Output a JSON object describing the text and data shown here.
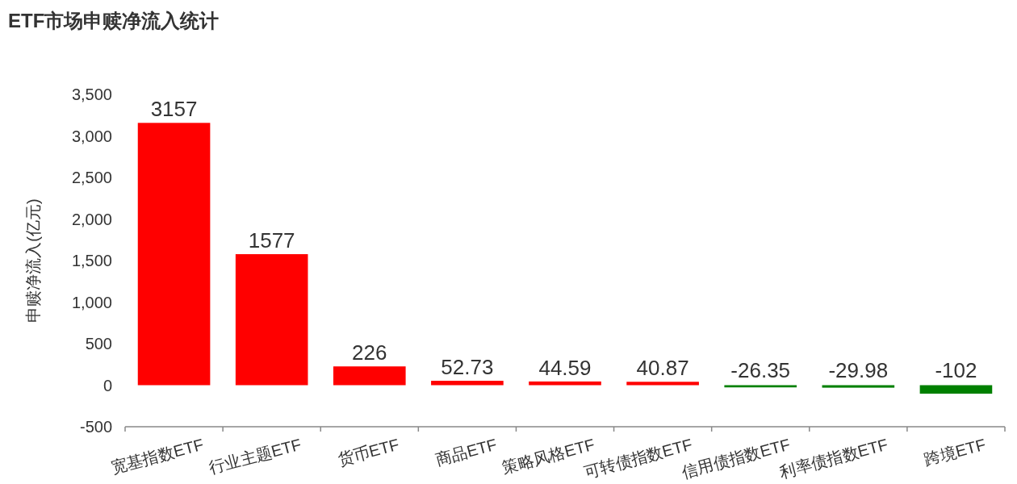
{
  "chart_data": {
    "type": "bar",
    "title": "ETF市场申赎净流入统计",
    "ylabel": "申赎净流入(亿元)",
    "categories": [
      "宽基指数ETF",
      "行业主题ETF",
      "货币ETF",
      "商品ETF",
      "策略风格ETF",
      "可转债指数ETF",
      "信用债指数ETF",
      "利率债指数ETF",
      "跨境ETF"
    ],
    "values": [
      3157,
      1577,
      226,
      52.73,
      44.59,
      40.87,
      -26.35,
      -29.98,
      -102
    ],
    "colors": [
      "#ff0000",
      "#ff0000",
      "#ff0000",
      "#ff0000",
      "#ff0000",
      "#ff0000",
      "#008000",
      "#008000",
      "#008000"
    ],
    "ylim": [
      -500,
      3500
    ],
    "yticks": [
      -500,
      0,
      500,
      {
        "value": 1000,
        "label": "1,000"
      },
      {
        "value": 1500,
        "label": "1,500"
      },
      {
        "value": 2000,
        "label": "2,000"
      },
      {
        "value": 2500,
        "label": "2,500"
      },
      {
        "value": 3000,
        "label": "3,000"
      },
      {
        "value": 3500,
        "label": "3,500"
      }
    ],
    "data_labels": true
  }
}
